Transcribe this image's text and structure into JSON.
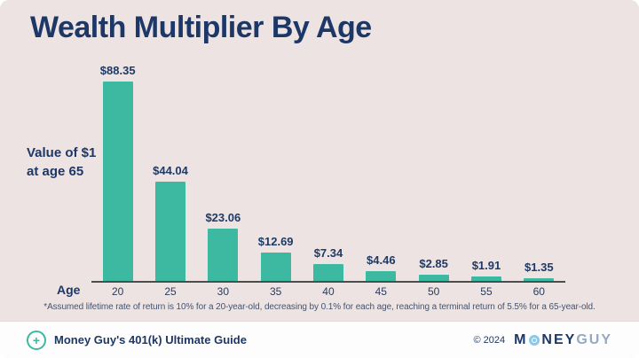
{
  "page": {
    "title": "Wealth Multiplier By Age"
  },
  "chart_data": {
    "type": "bar",
    "title": "Wealth Multiplier By Age",
    "categories": [
      "20",
      "25",
      "30",
      "35",
      "40",
      "45",
      "50",
      "55",
      "60"
    ],
    "values": [
      88.35,
      44.04,
      23.06,
      12.69,
      7.34,
      4.46,
      2.85,
      1.91,
      1.35
    ],
    "value_labels": [
      "$88.35",
      "$44.04",
      "$23.06",
      "$12.69",
      "$7.34",
      "$4.46",
      "$2.85",
      "$1.91",
      "$1.35"
    ],
    "xlabel": "Age",
    "ylabel": "Value of $1\nat age 65",
    "footnote": "*Assumed lifetime rate of return is 10% for a 20-year-old, decreasing by 0.1% for each age, reaching a terminal return of 5.5% for a 65-year-old.",
    "bar_color": "#3db9a2",
    "ylim": [
      0,
      95
    ],
    "grid": false,
    "legend": false,
    "axis_line_color": "#4d4d4d"
  },
  "colors": {
    "background": "#ece3e2",
    "accent_teal": "#3db9a2",
    "navy": "#1d3766",
    "footer_background": "#fdfdfd",
    "logo_light_blue": "#8cc9e9",
    "logo_gray_blue": "#96a9bf"
  },
  "footer": {
    "left_text": "Money Guy's 401(k) Ultimate Guide",
    "plus_icon": "+",
    "copyright": "© 2024",
    "logo": {
      "part_m": "M",
      "part_o": "O",
      "part_ney": "NEY",
      "part_guy": "GUY"
    }
  }
}
